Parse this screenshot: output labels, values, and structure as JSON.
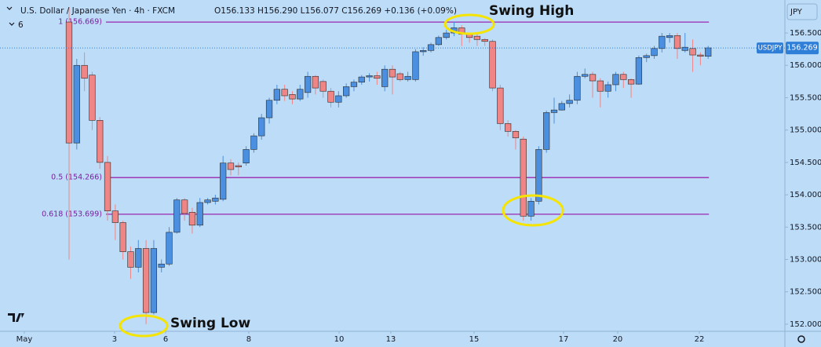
{
  "chart_data": {
    "type": "candlestick",
    "title": "U.S. Dollar / Japanese Yen · 4h · FXCM",
    "ohlc_text": "O156.133 H156.290 L156.077 C156.269 +0.136 (+0.09%)",
    "indicator_count": "6",
    "currency": "JPY",
    "symbol": "USDJPY",
    "last_price": 156.269,
    "annotations": [
      "Swing High",
      "Swing Low"
    ],
    "up_color": "#4a8fe0",
    "down_color": "#f08585",
    "x": [
      0,
      1,
      2,
      3,
      4,
      5,
      6,
      7,
      8,
      9,
      10,
      11,
      12,
      13,
      14,
      15,
      16,
      17,
      18,
      19,
      20,
      21,
      22,
      23,
      24,
      25,
      26,
      27,
      28,
      29,
      30,
      31,
      32,
      33,
      34,
      35,
      36,
      37,
      38,
      39,
      40,
      41,
      42,
      43,
      44,
      45,
      46,
      47,
      48,
      49,
      50,
      51,
      52,
      53,
      54,
      55,
      56,
      57,
      58,
      59,
      60,
      61,
      62,
      63,
      64,
      65,
      66,
      67,
      68,
      69,
      70,
      71,
      72,
      73,
      74,
      75,
      76,
      77,
      78,
      79,
      80,
      81,
      82,
      83
    ],
    "open": [
      156.67,
      154.8,
      156.0,
      155.85,
      155.15,
      154.5,
      153.75,
      153.57,
      153.12,
      152.88,
      153.17,
      152.18,
      152.88,
      152.93,
      153.42,
      153.92,
      153.73,
      153.53,
      153.88,
      153.9,
      153.93,
      154.49,
      154.45,
      154.49,
      154.7,
      154.91,
      155.19,
      155.46,
      155.63,
      155.55,
      155.48,
      155.58,
      155.83,
      155.75,
      155.6,
      155.43,
      155.53,
      155.67,
      155.74,
      155.82,
      155.84,
      155.67,
      155.94,
      155.87,
      155.78,
      155.78,
      156.21,
      156.23,
      156.32,
      156.43,
      156.5,
      156.58,
      156.48,
      156.45,
      156.4,
      156.37,
      155.65,
      155.1,
      154.98,
      154.86,
      153.67,
      153.9,
      154.7,
      155.27,
      155.31,
      155.41,
      155.46,
      155.83,
      155.86,
      155.76,
      155.6,
      155.7,
      155.86,
      155.78,
      155.71,
      156.12,
      156.15,
      156.26,
      156.43,
      156.46,
      156.23,
      156.26,
      156.16,
      156.14
    ],
    "high": [
      156.9,
      156.1,
      156.2,
      155.9,
      155.2,
      154.6,
      153.85,
      153.6,
      153.2,
      153.3,
      153.3,
      153.3,
      153.0,
      153.5,
      153.95,
      153.95,
      153.8,
      153.95,
      153.95,
      154.0,
      154.6,
      154.55,
      154.5,
      154.75,
      154.95,
      155.25,
      155.5,
      155.7,
      155.7,
      155.6,
      155.7,
      155.9,
      155.85,
      155.78,
      155.65,
      155.6,
      155.72,
      155.78,
      155.85,
      155.88,
      155.9,
      156.0,
      156.0,
      155.9,
      155.9,
      156.25,
      156.28,
      156.35,
      156.46,
      156.55,
      156.67,
      156.62,
      156.5,
      156.5,
      156.42,
      156.4,
      155.7,
      155.15,
      155.0,
      154.9,
      153.95,
      154.75,
      155.3,
      155.5,
      155.45,
      155.55,
      155.9,
      155.95,
      155.9,
      155.8,
      155.75,
      155.9,
      155.9,
      155.8,
      156.15,
      156.18,
      156.3,
      156.5,
      156.5,
      156.5,
      156.5,
      156.4,
      156.2,
      156.3
    ],
    "low": [
      153.0,
      154.7,
      155.6,
      155.0,
      154.4,
      153.6,
      153.3,
      153.0,
      152.7,
      152.8,
      152.0,
      152.15,
      152.8,
      152.9,
      153.4,
      153.6,
      153.4,
      153.5,
      153.85,
      153.85,
      153.9,
      154.3,
      154.3,
      154.45,
      154.65,
      154.85,
      155.1,
      155.4,
      155.45,
      155.4,
      155.45,
      155.5,
      155.55,
      155.5,
      155.35,
      155.35,
      155.5,
      155.6,
      155.7,
      155.75,
      155.7,
      155.6,
      155.55,
      155.75,
      155.75,
      155.75,
      156.15,
      156.2,
      156.3,
      156.4,
      156.45,
      156.3,
      156.35,
      156.3,
      156.3,
      155.6,
      155.0,
      154.9,
      154.7,
      153.6,
      153.6,
      153.85,
      154.65,
      155.1,
      155.3,
      155.35,
      155.4,
      155.8,
      155.5,
      155.35,
      155.5,
      155.6,
      155.65,
      155.5,
      155.7,
      156.05,
      156.1,
      156.2,
      156.35,
      156.1,
      156.2,
      155.9,
      156.0,
      156.1
    ],
    "close": [
      154.8,
      156.0,
      155.8,
      155.15,
      154.5,
      153.75,
      153.57,
      153.12,
      152.88,
      153.17,
      152.18,
      153.17,
      152.93,
      153.42,
      153.92,
      153.71,
      153.53,
      153.88,
      153.92,
      153.95,
      154.49,
      154.39,
      154.43,
      154.7,
      154.91,
      155.19,
      155.46,
      155.63,
      155.53,
      155.48,
      155.63,
      155.83,
      155.65,
      155.6,
      155.43,
      155.53,
      155.67,
      155.74,
      155.82,
      155.84,
      155.8,
      155.94,
      155.82,
      155.78,
      155.83,
      156.21,
      156.23,
      156.32,
      156.43,
      156.5,
      156.58,
      156.48,
      156.43,
      156.4,
      156.37,
      155.65,
      155.1,
      154.98,
      154.88,
      153.67,
      153.9,
      154.7,
      155.27,
      155.31,
      155.41,
      155.46,
      155.83,
      155.86,
      155.76,
      155.6,
      155.7,
      155.86,
      155.78,
      155.71,
      156.12,
      156.15,
      156.26,
      156.45,
      156.46,
      156.26,
      156.28,
      156.16,
      156.14,
      156.27
    ],
    "levels": [
      {
        "value": 156.669,
        "label": "1 (156.669)"
      },
      {
        "value": 154.266,
        "label": "0.5 (154.266)"
      },
      {
        "value": 153.699,
        "label": "0.618 (153.699)"
      }
    ],
    "level_color": "#9c27b0",
    "xlim": [
      -8.97,
      92.97
    ],
    "xticks": [
      {
        "value": -5.81,
        "label": "May"
      },
      {
        "value": 5.91,
        "label": "3"
      },
      {
        "value": 12.54,
        "label": "6"
      },
      {
        "value": 23.34,
        "label": "8"
      },
      {
        "value": 35.07,
        "label": "10"
      },
      {
        "value": 41.79,
        "label": "13"
      },
      {
        "value": 52.6,
        "label": "15"
      },
      {
        "value": 64.22,
        "label": "17"
      },
      {
        "value": 71.25,
        "label": "20"
      },
      {
        "value": 81.86,
        "label": "22"
      }
    ],
    "ylim": [
      151.89,
      157.01
    ],
    "yticks": [
      {
        "value": 152.0,
        "label": "152.000"
      },
      {
        "value": 152.5,
        "label": "152.500"
      },
      {
        "value": 153.0,
        "label": "153.000"
      },
      {
        "value": 153.5,
        "label": "153.500"
      },
      {
        "value": 154.0,
        "label": "154.000"
      },
      {
        "value": 154.5,
        "label": "154.500"
      },
      {
        "value": 155.0,
        "label": "155.000"
      },
      {
        "value": 155.5,
        "label": "155.500"
      },
      {
        "value": 156.0,
        "label": "156.000"
      },
      {
        "value": 156.5,
        "label": "156.500"
      }
    ]
  }
}
